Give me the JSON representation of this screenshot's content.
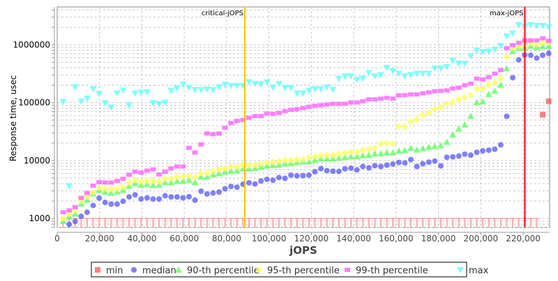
{
  "chart_data": {
    "type": "scatter",
    "title": "",
    "xlabel": "jOPS",
    "ylabel": "Response time, usec",
    "xlim": [
      0,
      232500
    ],
    "ylim": [
      700,
      4500000
    ],
    "y_scale": "log",
    "grid": true,
    "legend_placement": "bottom",
    "x_ticks": [
      "0",
      "20,000",
      "40,000",
      "60,000",
      "80,000",
      "100,000",
      "120,000",
      "140,000",
      "160,000",
      "180,000",
      "200,000",
      "220,000"
    ],
    "x_tick_values": [
      0,
      20000,
      40000,
      60000,
      80000,
      100000,
      120000,
      140000,
      160000,
      180000,
      200000,
      220000
    ],
    "y_ticks": [
      "1000",
      "10000",
      "100000",
      "1000000"
    ],
    "y_tick_values": [
      1000,
      10000,
      100000,
      1000000
    ],
    "markers": [
      {
        "label": "critical-jOPS",
        "x": 88600,
        "color": "#ffc000"
      },
      {
        "label": "max-jOPS",
        "x": 220800,
        "color": "#ff0000"
      }
    ],
    "x": [
      2830,
      5660,
      8490,
      11320,
      14150,
      16980,
      19810,
      22640,
      25470,
      28300,
      31130,
      33960,
      36790,
      39620,
      42450,
      45280,
      48110,
      50940,
      53770,
      56600,
      59430,
      62260,
      65090,
      67920,
      70750,
      73580,
      76410,
      79240,
      82070,
      84900,
      87730,
      90560,
      93390,
      96220,
      99050,
      101880,
      104710,
      107540,
      110370,
      113200,
      116030,
      118860,
      121690,
      124520,
      127350,
      130180,
      133010,
      135840,
      138670,
      141500,
      144330,
      147160,
      149990,
      152820,
      155650,
      158480,
      161310,
      164140,
      166970,
      169800,
      172630,
      175460,
      178290,
      181120,
      183950,
      186780,
      189610,
      192440,
      195270,
      198100,
      200930,
      203760,
      206590,
      209420,
      212250,
      215080,
      217910,
      220740,
      223570,
      226400,
      229230,
      232060
    ],
    "series": [
      {
        "name": "min",
        "color": "#ff5555",
        "shape": "square",
        "values": [
          1000,
          1000,
          1000,
          1000,
          1000,
          1000,
          1000,
          1000,
          1000,
          1000,
          1000,
          1000,
          1000,
          1000,
          1000,
          1000,
          1000,
          1000,
          1000,
          1000,
          1000,
          1000,
          1000,
          1000,
          1000,
          1000,
          1000,
          1000,
          1000,
          1000,
          1000,
          1000,
          1000,
          1000,
          1000,
          1000,
          1000,
          1000,
          1000,
          1000,
          1000,
          1000,
          1000,
          1000,
          1000,
          1000,
          1000,
          1000,
          1000,
          1000,
          1000,
          1000,
          1000,
          1000,
          1000,
          1000,
          1000,
          1000,
          1000,
          1000,
          1000,
          1000,
          1000,
          1000,
          1000,
          1000,
          1000,
          1000,
          1000,
          1000,
          1000,
          1000,
          1000,
          1000,
          1000,
          1000,
          1000,
          1000,
          1000,
          1000,
          62000,
          106000
        ]
      },
      {
        "name": "median",
        "color": "#5555ff",
        "shape": "circle",
        "values": [
          null,
          790,
          890,
          1090,
          1280,
          1680,
          2250,
          1890,
          1770,
          1770,
          1980,
          2360,
          2560,
          2170,
          2270,
          2170,
          2170,
          2470,
          2360,
          2360,
          2270,
          2380,
          2070,
          2960,
          2650,
          2750,
          2860,
          3260,
          3570,
          3470,
          3900,
          4130,
          3950,
          4440,
          4740,
          4570,
          5100,
          4930,
          5600,
          5450,
          5500,
          5600,
          6420,
          7250,
          6700,
          6550,
          6500,
          7200,
          7400,
          6900,
          7900,
          7500,
          8160,
          7900,
          8350,
          8720,
          9300,
          9150,
          10400,
          7900,
          8800,
          9400,
          9800,
          8100,
          11400,
          11600,
          12000,
          12900,
          12400,
          13900,
          14700,
          15100,
          15700,
          18700,
          58000,
          270000,
          550000,
          668000,
          660000,
          590000,
          660000,
          710000
        ]
      },
      {
        "name": "90-th percentile",
        "color": "#55ff55",
        "shape": "triangle-up",
        "values": [
          900,
          1080,
          1200,
          1800,
          2090,
          2680,
          3070,
          2850,
          2750,
          2900,
          3070,
          3600,
          4060,
          3800,
          3900,
          3750,
          3800,
          4200,
          4200,
          4400,
          4400,
          4600,
          4200,
          5250,
          5250,
          5750,
          6000,
          6370,
          6600,
          6750,
          7250,
          7250,
          7400,
          7750,
          8100,
          8300,
          8450,
          8800,
          9000,
          9300,
          9600,
          9600,
          10200,
          10800,
          10800,
          10800,
          11100,
          11400,
          11700,
          11700,
          12200,
          12400,
          13200,
          13200,
          13800,
          13700,
          14700,
          15000,
          16400,
          15300,
          16200,
          17000,
          17500,
          18100,
          20900,
          28000,
          35300,
          41500,
          58500,
          101000,
          105000,
          140000,
          160000,
          203000,
          390000,
          770000,
          880000,
          880000,
          950000,
          900000,
          940000,
          950000
        ]
      },
      {
        "name": "95-th percentile",
        "color": "#ffff55",
        "shape": "diamond",
        "values": [
          1000,
          1190,
          1380,
          2000,
          2400,
          2800,
          3380,
          3300,
          3250,
          3250,
          3470,
          4170,
          4570,
          4330,
          4450,
          4450,
          4330,
          4870,
          4870,
          5200,
          5300,
          5500,
          5100,
          6080,
          6080,
          6550,
          7050,
          7250,
          7700,
          7750,
          8250,
          8250,
          8400,
          8800,
          9300,
          9400,
          9700,
          10100,
          10100,
          10400,
          10400,
          11200,
          11700,
          12200,
          12400,
          12400,
          13000,
          13500,
          14000,
          14000,
          15100,
          15700,
          16600,
          19500,
          20000,
          19500,
          38800,
          38800,
          47500,
          51300,
          61000,
          67000,
          77500,
          83000,
          95000,
          101000,
          115000,
          122000,
          136000,
          171000,
          177000,
          203000,
          222000,
          267000,
          615000,
          880000,
          950000,
          1070000,
          1070000,
          1020000,
          1070000,
          1080000
        ]
      },
      {
        "name": "99-th percentile",
        "color": "#ff55ff",
        "shape": "bar",
        "values": [
          1280,
          1380,
          1570,
          2270,
          2750,
          3670,
          4240,
          4180,
          4180,
          4450,
          4840,
          5700,
          6420,
          6200,
          6700,
          7050,
          5770,
          6400,
          7300,
          7900,
          7900,
          16600,
          13800,
          19000,
          29300,
          28600,
          29300,
          36800,
          44500,
          48300,
          50200,
          55000,
          58500,
          58500,
          65000,
          64000,
          66500,
          71500,
          75500,
          77000,
          80500,
          85000,
          88500,
          90500,
          93000,
          95500,
          95500,
          95500,
          101000,
          101000,
          106000,
          114000,
          114000,
          117000,
          121000,
          118000,
          134000,
          135000,
          139000,
          139000,
          145000,
          151000,
          158000,
          160000,
          163000,
          176000,
          181000,
          200000,
          213000,
          260000,
          252000,
          277000,
          318000,
          365000,
          873000,
          985000,
          1080000,
          1190000,
          1190000,
          1190000,
          1290000,
          1170000
        ]
      },
      {
        "name": "max",
        "color": "#55ffff",
        "shape": "triangle-down",
        "values": [
          104000,
          3640,
          185000,
          106000,
          118000,
          172000,
          143000,
          99000,
          83000,
          146000,
          164000,
          90000,
          145000,
          151000,
          153000,
          99000,
          95000,
          101000,
          162000,
          177000,
          208000,
          181000,
          167000,
          167000,
          170000,
          166000,
          185000,
          205000,
          196000,
          196000,
          196000,
          227000,
          213000,
          208000,
          227000,
          183000,
          213000,
          181000,
          181000,
          145000,
          145000,
          162000,
          172000,
          172000,
          185000,
          167000,
          260000,
          288000,
          288000,
          250000,
          262000,
          329000,
          288000,
          302000,
          403000,
          355000,
          318000,
          288000,
          302000,
          318000,
          318000,
          318000,
          392000,
          392000,
          414000,
          534000,
          475000,
          475000,
          640000,
          795000,
          750000,
          770000,
          830000,
          960000,
          1410000,
          1580000,
          2210000,
          2100000,
          2210000,
          2130000,
          2130000,
          2030000
        ]
      }
    ]
  }
}
